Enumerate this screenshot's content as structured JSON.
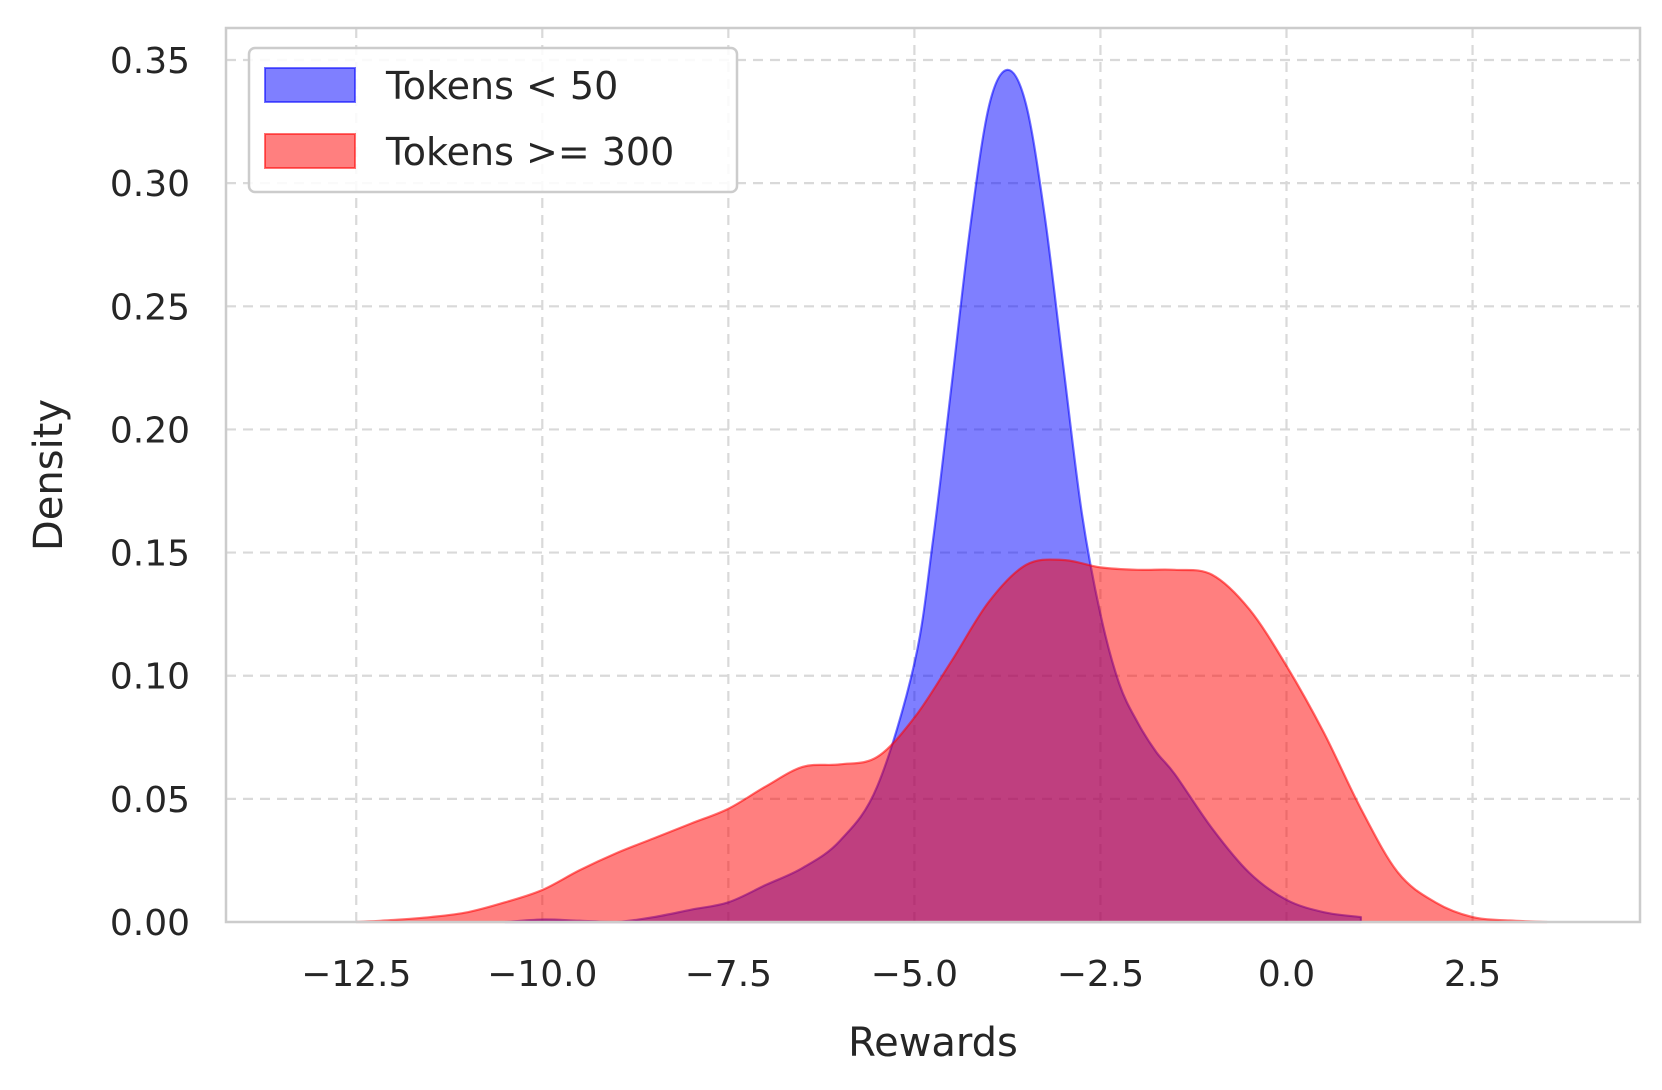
{
  "chart_data": {
    "type": "area",
    "xlabel": "Rewards",
    "ylabel": "Density",
    "xlim": [
      -14.25,
      4.75
    ],
    "ylim": [
      0,
      0.363
    ],
    "xticks": [
      -12.5,
      -10.0,
      -7.5,
      -5.0,
      -2.5,
      0.0,
      2.5
    ],
    "xtick_labels": [
      "−12.5",
      "−10.0",
      "−7.5",
      "−5.0",
      "−2.5",
      "0.0",
      "2.5"
    ],
    "yticks": [
      0.0,
      0.05,
      0.1,
      0.15,
      0.2,
      0.25,
      0.3,
      0.35
    ],
    "ytick_labels": [
      "0.00",
      "0.05",
      "0.10",
      "0.15",
      "0.20",
      "0.25",
      "0.30",
      "0.35"
    ],
    "grid": true,
    "legend_position": "upper-left",
    "series": [
      {
        "name": "Tokens < 50",
        "color": "#0000ff",
        "x": [
          -10.5,
          -10.0,
          -9.5,
          -9.0,
          -8.5,
          -8.0,
          -7.5,
          -7.0,
          -6.5,
          -6.0,
          -5.5,
          -5.0,
          -4.75,
          -4.5,
          -4.25,
          -4.0,
          -3.75,
          -3.5,
          -3.25,
          -3.0,
          -2.75,
          -2.5,
          -2.25,
          -2.0,
          -1.75,
          -1.5,
          -1.0,
          -0.5,
          0.0,
          0.5,
          1.0
        ],
        "values": [
          0.0,
          0.001,
          0.0005,
          0.0,
          0.002,
          0.005,
          0.008,
          0.015,
          0.022,
          0.033,
          0.055,
          0.105,
          0.155,
          0.218,
          0.282,
          0.331,
          0.346,
          0.332,
          0.287,
          0.226,
          0.166,
          0.125,
          0.097,
          0.081,
          0.069,
          0.06,
          0.038,
          0.02,
          0.009,
          0.004,
          0.002
        ]
      },
      {
        "name": "Tokens >= 300",
        "color": "#ff0000",
        "x": [
          -12.5,
          -12.0,
          -11.5,
          -11.0,
          -10.5,
          -10.0,
          -9.5,
          -9.0,
          -8.5,
          -8.0,
          -7.5,
          -7.0,
          -6.5,
          -6.0,
          -5.5,
          -5.0,
          -4.5,
          -4.0,
          -3.5,
          -3.0,
          -2.5,
          -2.0,
          -1.5,
          -1.0,
          -0.5,
          0.0,
          0.5,
          1.0,
          1.5,
          2.0,
          2.5,
          3.0,
          3.5
        ],
        "values": [
          0.0,
          0.0008,
          0.002,
          0.004,
          0.008,
          0.013,
          0.021,
          0.028,
          0.034,
          0.04,
          0.046,
          0.055,
          0.063,
          0.064,
          0.067,
          0.083,
          0.106,
          0.13,
          0.145,
          0.147,
          0.144,
          0.143,
          0.143,
          0.141,
          0.127,
          0.104,
          0.077,
          0.046,
          0.02,
          0.008,
          0.002,
          0.0006,
          0.0
        ]
      }
    ]
  }
}
